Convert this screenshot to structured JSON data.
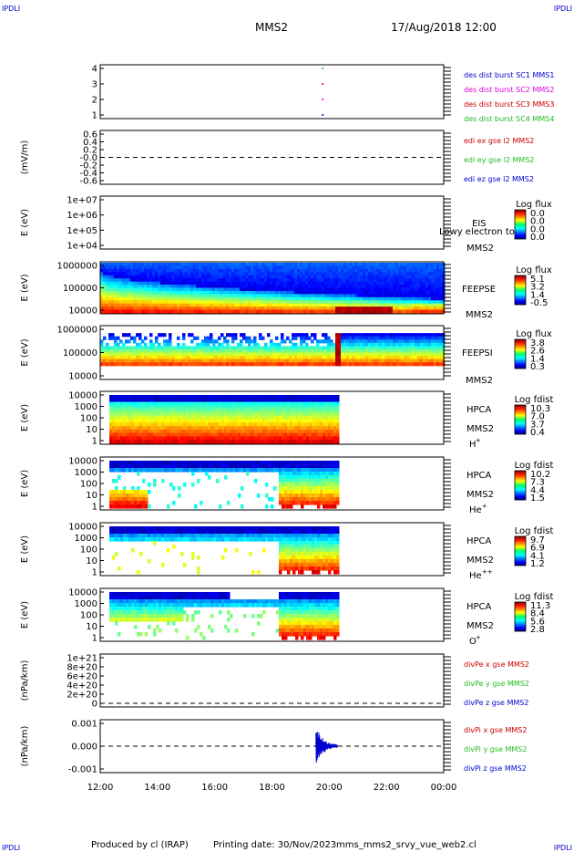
{
  "header": {
    "corner_left": "IPDLI",
    "corner_right": "IPDLI",
    "title": "MMS2",
    "datetime": "17/Aug/2018 12:00"
  },
  "footer": {
    "corner_left": "IPDLI",
    "corner_right": "IPDLI",
    "produced_by": "Produced by cl (IRAP)",
    "printing_date": "Printing date: 30/Nov/2023",
    "filename": "mms_mms2_srvy_vue_web2.cl"
  },
  "colors": {
    "red": "#cc0000",
    "green": "#22bb22",
    "blue": "#0000cc",
    "magenta": "#dd00dd"
  },
  "chart_data": {
    "type": "spectrogram-stack",
    "x_ticks": [
      "12:00",
      "14:00",
      "16:00",
      "18:00",
      "20:00",
      "22:00",
      "00:00"
    ],
    "panels": [
      {
        "id": "burst",
        "type": "scatter",
        "ylabel": "",
        "yticks": [
          "4",
          "3",
          "2",
          "1"
        ],
        "legend": [
          {
            "text": "des dist burst SC1 MMS1",
            "color": "#0000cc"
          },
          {
            "text": "des dist burst SC2 MMS2",
            "color": "#dd00dd"
          },
          {
            "text": "des dist burst SC3 MMS3",
            "color": "#cc0000"
          },
          {
            "text": "des dist burst SC4 MMS4",
            "color": "#22bb22"
          }
        ],
        "points": [
          {
            "hour": 19.75,
            "sc": 4,
            "color": "#22bb22"
          },
          {
            "hour": 19.75,
            "sc": 3,
            "color": "#cc0000"
          },
          {
            "hour": 19.75,
            "sc": 2,
            "color": "#dd00dd"
          },
          {
            "hour": 19.75,
            "sc": 1,
            "color": "#0000cc"
          }
        ]
      },
      {
        "id": "edi",
        "type": "line",
        "ylabel": "(mV/m)",
        "yticks": [
          "0.6",
          "0.4",
          "0.2",
          "-0.0",
          "-0.2",
          "-0.4",
          "-0.6"
        ],
        "legend": [
          {
            "text": "edi ex gse l2 MMS2",
            "color": "#cc0000"
          },
          {
            "text": "edi ey gse l2 MMS2",
            "color": "#22bb22"
          },
          {
            "text": "edi ez gse l2 MMS2",
            "color": "#0000cc"
          }
        ]
      },
      {
        "id": "eis",
        "type": "heatmap",
        "ylabel": "E (eV)",
        "yticks": [
          "1e+07",
          "1e+06",
          "1e+05",
          "1e+04"
        ],
        "side_labels": [
          "EIS",
          "MMS2"
        ],
        "overlay_label": "Lowy electron to",
        "cbar_title": "Log flux",
        "cbar_ticks": [
          "0.0",
          "0.0",
          "0.0",
          "0.0"
        ]
      },
      {
        "id": "feepse",
        "type": "heatmap",
        "ylabel": "E (eV)",
        "yticks": [
          "1000000",
          "100000",
          "10000"
        ],
        "side_labels": [
          "FEEPSE",
          "MMS2"
        ],
        "cbar_title": "Log flux",
        "cbar_ticks": [
          "5.1",
          "3.2",
          "1.4",
          "-0.5"
        ]
      },
      {
        "id": "feepsi",
        "type": "heatmap",
        "ylabel": "E (eV)",
        "yticks": [
          "1000000",
          "100000",
          "10000"
        ],
        "side_labels": [
          "FEEPSI",
          "MMS2"
        ],
        "cbar_title": "Log flux",
        "cbar_ticks": [
          "3.8",
          "2.6",
          "1.4",
          "0.3"
        ]
      },
      {
        "id": "hpca_h",
        "type": "heatmap",
        "ylabel": "E (eV)",
        "yticks": [
          "10000",
          "1000",
          "100",
          "10",
          "1"
        ],
        "side_labels": [
          "HPCA",
          "MMS2"
        ],
        "species": "H",
        "species_sup": "+",
        "cbar_title": "Log fdist",
        "cbar_ticks": [
          "10.3",
          "7.0",
          "3.7",
          "0.4"
        ]
      },
      {
        "id": "hpca_he",
        "type": "heatmap",
        "ylabel": "E (eV)",
        "yticks": [
          "10000",
          "1000",
          "100",
          "10",
          "1"
        ],
        "side_labels": [
          "HPCA",
          "MMS2"
        ],
        "species": "He",
        "species_sup": "+",
        "cbar_title": "Log fdist",
        "cbar_ticks": [
          "10.2",
          "7.3",
          "4.4",
          "1.5"
        ]
      },
      {
        "id": "hpca_hepp",
        "type": "heatmap",
        "ylabel": "E (eV)",
        "yticks": [
          "10000",
          "1000",
          "100",
          "10",
          "1"
        ],
        "side_labels": [
          "HPCA",
          "MMS2"
        ],
        "species": "He",
        "species_sup": "++",
        "cbar_title": "Log fdist",
        "cbar_ticks": [
          "9.7",
          "6.9",
          "4.1",
          "1.2"
        ]
      },
      {
        "id": "hpca_o",
        "type": "heatmap",
        "ylabel": "E (eV)",
        "yticks": [
          "10000",
          "1000",
          "100",
          "10",
          "1"
        ],
        "side_labels": [
          "HPCA",
          "MMS2"
        ],
        "species": "O",
        "species_sup": "+",
        "cbar_title": "Log fdist",
        "cbar_ticks": [
          "11.3",
          "8.4",
          "5.6",
          "2.8"
        ]
      },
      {
        "id": "divpe",
        "type": "line",
        "ylabel": "(nPa/km)",
        "yticks": [
          "1e+21",
          "8e+20",
          "6e+20",
          "4e+20",
          "2e+20",
          "0"
        ],
        "legend": [
          {
            "text": "divPe x gse MMS2",
            "color": "#cc0000"
          },
          {
            "text": "divPe y gse MMS2",
            "color": "#22bb22"
          },
          {
            "text": "divPe z gse MMS2",
            "color": "#0000cc"
          }
        ]
      },
      {
        "id": "divpi",
        "type": "line",
        "ylabel": "(nPa/km)",
        "yticks": [
          "0.001",
          "0.000",
          "-0.001"
        ],
        "legend": [
          {
            "text": "divPi x gse MMS2",
            "color": "#cc0000"
          },
          {
            "text": "divPi y gse MMS2",
            "color": "#22bb22"
          },
          {
            "text": "divPi z gse MMS2",
            "color": "#0000cc"
          }
        ],
        "burst_hour": 19.6
      }
    ]
  }
}
